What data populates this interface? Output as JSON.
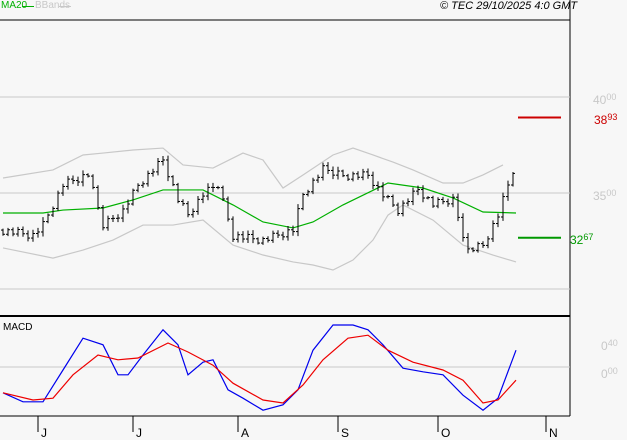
{
  "legend": {
    "ma_label": "MA20",
    "bbands_label": "BBands"
  },
  "copyright": "© TEC 29/10/2025 4:0 GMT",
  "macd_label": "MACD",
  "colors": {
    "ma": "#00b000",
    "bands": "#c8c8c8",
    "resistance": "#cc0000",
    "support": "#009900",
    "macd": "#0000ee",
    "signal": "#ee0000"
  },
  "price_axis": [
    {
      "main": "40",
      "sup": "00",
      "value": 4000
    },
    {
      "main": "35",
      "sup": "00",
      "value": 3500
    }
  ],
  "macd_axis": [
    {
      "main": "0",
      "sup": "40",
      "value": 0.4
    },
    {
      "main": "0",
      "sup": "00",
      "value": 0
    }
  ],
  "levels": {
    "resistance": {
      "main": "38",
      "sup": "93",
      "value": 3893
    },
    "support": {
      "main": "32",
      "sup": "67",
      "value": 3267
    }
  },
  "months": [
    "J",
    "J",
    "A",
    "S",
    "O",
    "N"
  ],
  "chart_data": {
    "type": "line",
    "price_ylim": [
      3000,
      4000
    ],
    "macd_ylim": [
      -0.82,
      0.82
    ],
    "x_range": [
      0,
      114
    ],
    "month_ticks_at": [
      7,
      26,
      47,
      67,
      87,
      108.6
    ],
    "close": {
      "x": [
        0,
        6,
        8,
        12,
        17,
        20,
        24,
        27,
        32,
        35,
        37,
        40,
        43,
        46,
        52,
        58,
        60,
        64,
        68,
        73,
        76,
        79,
        83,
        86,
        90,
        93,
        96,
        99,
        102
      ],
      "y": [
        3307,
        3281,
        3333,
        3542,
        3594,
        3333,
        3411,
        3542,
        3672,
        3464,
        3385,
        3490,
        3542,
        3281,
        3255,
        3307,
        3490,
        3620,
        3594,
        3594,
        3490,
        3411,
        3516,
        3438,
        3464,
        3203,
        3229,
        3385,
        3620
      ]
    },
    "ma20": {
      "x": [
        0,
        8,
        12,
        20,
        26,
        32,
        40,
        46,
        52,
        58,
        62,
        68,
        77,
        84,
        90,
        96,
        102.6
      ],
      "y": [
        3396,
        3396,
        3411,
        3422,
        3464,
        3516,
        3516,
        3438,
        3349,
        3318,
        3349,
        3438,
        3552,
        3526,
        3474,
        3401,
        3396
      ]
    },
    "upper_band": {
      "x": [
        0,
        10,
        16,
        20,
        26,
        32,
        36,
        42,
        48,
        52,
        56,
        60,
        66,
        70,
        74,
        78,
        82,
        88,
        92,
        96,
        100
      ],
      "y": [
        3578,
        3620,
        3698,
        3708,
        3724,
        3734,
        3646,
        3630,
        3708,
        3672,
        3526,
        3594,
        3698,
        3734,
        3698,
        3661,
        3620,
        3552,
        3552,
        3594,
        3646
      ]
    },
    "lower_band": {
      "x": [
        0,
        10,
        16,
        22,
        28,
        34,
        40,
        46,
        52,
        58,
        62,
        66,
        70,
        74,
        77,
        80,
        86,
        92,
        98,
        102.6
      ],
      "y": [
        3214,
        3161,
        3203,
        3255,
        3333,
        3333,
        3359,
        3229,
        3177,
        3141,
        3125,
        3099,
        3151,
        3255,
        3385,
        3438,
        3359,
        3229,
        3177,
        3141
      ]
    },
    "macd": {
      "x": [
        0,
        4,
        8,
        12,
        16,
        20,
        23,
        25,
        28,
        32,
        35,
        37,
        40,
        42,
        45,
        48,
        52,
        56,
        59,
        62,
        66,
        70,
        73,
        76,
        80,
        84,
        88,
        92,
        96,
        99,
        102.6
      ],
      "y": [
        -0.43,
        -0.58,
        -0.58,
        -0.05,
        0.48,
        0.37,
        -0.13,
        -0.13,
        0.2,
        0.62,
        0.37,
        -0.13,
        0.08,
        0.12,
        -0.38,
        -0.52,
        -0.72,
        -0.63,
        -0.38,
        0.28,
        0.7,
        0.7,
        0.62,
        0.37,
        -0.02,
        -0.08,
        -0.13,
        -0.47,
        -0.72,
        -0.52,
        0.28
      ]
    },
    "signal": {
      "x": [
        0,
        6,
        10,
        14,
        19,
        23,
        27,
        33,
        37,
        42,
        46,
        52,
        56,
        60,
        64,
        69,
        73,
        77,
        82,
        88,
        92,
        96,
        99,
        102.6
      ],
      "y": [
        -0.43,
        -0.55,
        -0.52,
        -0.13,
        0.2,
        0.12,
        0.15,
        0.4,
        0.25,
        0.03,
        -0.27,
        -0.55,
        -0.6,
        -0.3,
        0.12,
        0.48,
        0.53,
        0.28,
        0.08,
        -0.05,
        -0.22,
        -0.6,
        -0.55,
        -0.22
      ]
    }
  }
}
